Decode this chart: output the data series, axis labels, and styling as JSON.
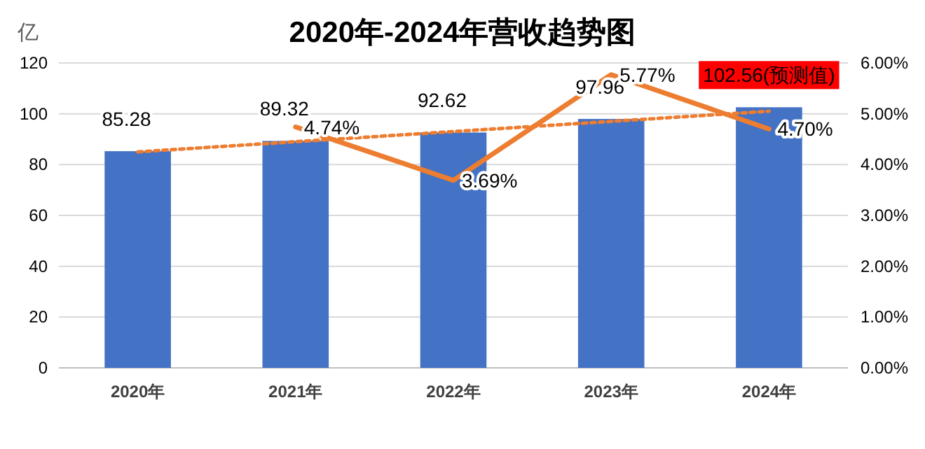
{
  "chart_data": {
    "type": "bar",
    "title": "2020年-2024年营收趋势图",
    "ylabel": "亿",
    "categories": [
      "2020年",
      "2021年",
      "2022年",
      "2023年",
      "2024年"
    ],
    "series": [
      {
        "color": "#4472c4",
        "values": [
          85.28,
          89.32,
          92.62,
          97.96,
          102.56
        ],
        "value_labels": [
          "85.28",
          "89.32",
          "92.62",
          "97.96",
          null
        ]
      },
      {
        "type": "line",
        "axis": "y2",
        "color": "#ed7d31",
        "values": [
          null,
          4.74,
          3.69,
          5.77,
          4.7
        ],
        "value_labels": [
          null,
          "4.74%",
          "3.69%",
          "5.77%",
          "4.70%"
        ]
      },
      {
        "type": "line",
        "line_style": "dotted",
        "color": "#ed7d31",
        "x": [
          "2020年",
          "2024年"
        ],
        "values": [
          85,
          101
        ]
      }
    ],
    "annotations": [
      {
        "text": "102.56(预测值)",
        "x": "2024年",
        "y": 102.56
      }
    ],
    "ylim": [
      0,
      120
    ],
    "yticks": [
      0,
      20,
      40,
      60,
      80,
      100,
      120
    ],
    "y2lim": [
      0,
      6
    ],
    "y2ticks": [
      {
        "value": 0,
        "label": "0.00%"
      },
      {
        "value": 1,
        "label": "1.00%"
      },
      {
        "value": 2,
        "label": "2.00%"
      },
      {
        "value": 3,
        "label": "3.00%"
      },
      {
        "value": 4,
        "label": "4.00%"
      },
      {
        "value": 5,
        "label": "5.00%"
      },
      {
        "value": 6,
        "label": "6.00%"
      }
    ],
    "grid": "y"
  }
}
